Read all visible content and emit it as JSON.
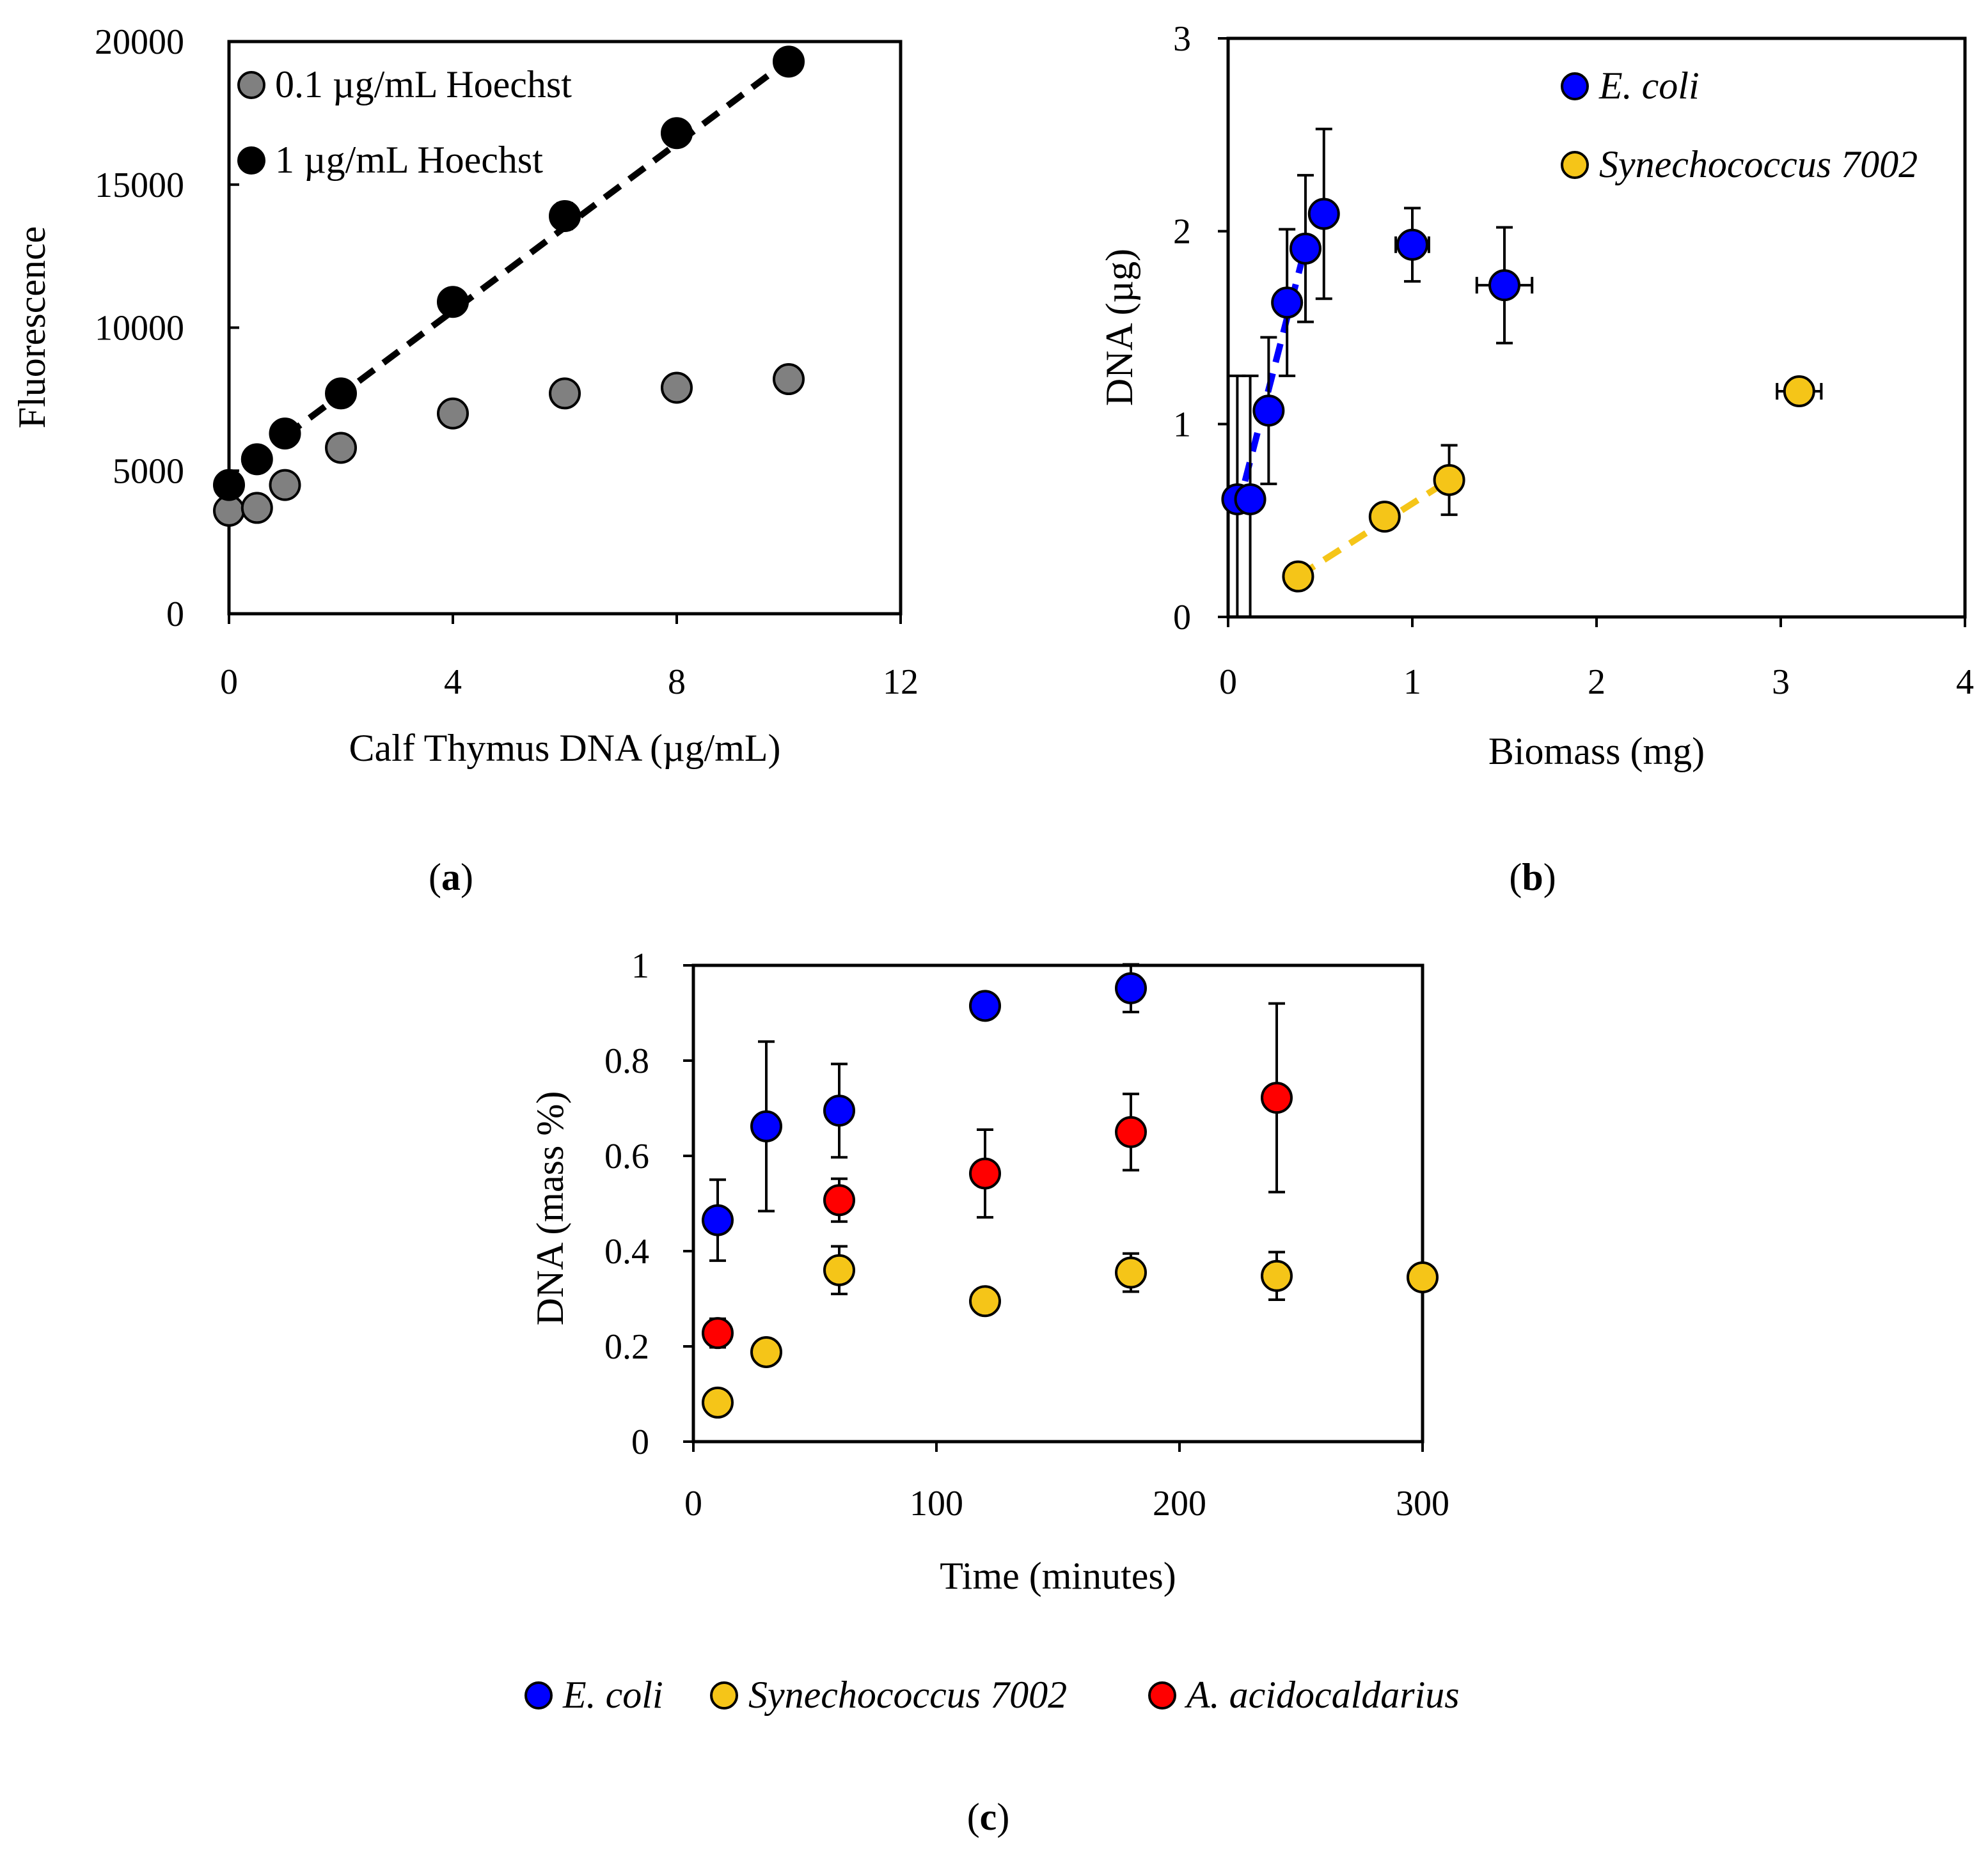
{
  "chart_data": [
    {
      "panel": "a",
      "panel_label_open": "(",
      "panel_label_letter": "a",
      "panel_label_close": ")",
      "type": "scatter",
      "xlabel": "Calf Thymus DNA (µg/mL)",
      "ylabel": "Fluorescence",
      "xlim": [
        0,
        12
      ],
      "ylim": [
        0,
        20000
      ],
      "xticks": [
        0,
        4,
        8,
        12
      ],
      "yticks": [
        0,
        5000,
        10000,
        15000,
        20000
      ],
      "legend_position": "top-left",
      "series": [
        {
          "name": "0.1 µg/mL Hoechst",
          "color": "#808080",
          "x": [
            0,
            0.5,
            1,
            2,
            4,
            6,
            8,
            10
          ],
          "y": [
            3600,
            3700,
            4500,
            5800,
            7000,
            7700,
            7900,
            8200
          ],
          "yerr": [
            0,
            0,
            0,
            0,
            0,
            0,
            0,
            0
          ]
        },
        {
          "name": "1 µg/mL Hoechst",
          "color": "#000000",
          "x": [
            0,
            0.5,
            1,
            2,
            4,
            6,
            8,
            10
          ],
          "y": [
            4500,
            5400,
            6300,
            7700,
            10900,
            13900,
            16800,
            19300
          ],
          "yerr": [
            0,
            0,
            0,
            0,
            0,
            450,
            0,
            0
          ],
          "trendline": {
            "x": [
              1,
              10
            ],
            "y": [
              6200,
              19350
            ],
            "color": "#000000"
          }
        }
      ]
    },
    {
      "panel": "b",
      "panel_label_open": "(",
      "panel_label_letter": "b",
      "panel_label_close": ")",
      "type": "scatter",
      "xlabel": "Biomass (mg)",
      "ylabel": "DNA (µg)",
      "xlim": [
        0,
        4
      ],
      "ylim": [
        0,
        3
      ],
      "xticks": [
        0,
        1,
        2,
        3,
        4
      ],
      "yticks": [
        0,
        1,
        2,
        3
      ],
      "legend_position": "top-right",
      "series": [
        {
          "name": "E. coli",
          "color": "#0000ff",
          "x": [
            0.05,
            0.12,
            0.22,
            0.32,
            0.42,
            0.52,
            1.0,
            1.5
          ],
          "y": [
            0.61,
            0.61,
            1.07,
            1.63,
            1.91,
            2.09,
            1.93,
            1.72
          ],
          "yerr": [
            0.64,
            0.64,
            0.38,
            0.38,
            0.38,
            0.44,
            0.19,
            0.3
          ],
          "xerr": [
            0,
            0,
            0,
            0,
            0,
            0,
            0.09,
            0.15
          ],
          "trendline": {
            "x": [
              0.05,
              0.42
            ],
            "y": [
              0.55,
              1.92
            ],
            "color": "#0000ff"
          }
        },
        {
          "name": "Synechococcus 7002",
          "color": "#f5c518",
          "x": [
            0.38,
            0.85,
            1.2,
            3.1
          ],
          "y": [
            0.21,
            0.52,
            0.71,
            1.17
          ],
          "yerr": [
            0.06,
            0,
            0.18,
            0
          ],
          "xerr": [
            0,
            0,
            0,
            0.12
          ],
          "trendline": {
            "x": [
              0.38,
              1.2
            ],
            "y": [
              0.21,
              0.71
            ],
            "color": "#f5c518"
          }
        }
      ]
    },
    {
      "panel": "c",
      "panel_label_open": "(",
      "panel_label_letter": "c",
      "panel_label_close": ")",
      "type": "scatter",
      "xlabel": "Time (minutes)",
      "ylabel": "DNA (mass %)",
      "xlim": [
        0,
        300
      ],
      "ylim": [
        0,
        1
      ],
      "xticks": [
        0,
        100,
        200,
        300
      ],
      "yticks": [
        0,
        0.2,
        0.4,
        0.6,
        0.8,
        1
      ],
      "legend_position": "bottom",
      "series": [
        {
          "name": "E. coli",
          "color": "#0000ff",
          "x": [
            10,
            30,
            60,
            120,
            180
          ],
          "y": [
            0.465,
            0.662,
            0.695,
            0.915,
            0.952
          ],
          "yerr": [
            0.085,
            0.178,
            0.098,
            0.01,
            0.05
          ]
        },
        {
          "name": "Synechococcus 7002",
          "color": "#f5c518",
          "x": [
            10,
            30,
            60,
            120,
            180,
            240,
            300
          ],
          "y": [
            0.082,
            0.188,
            0.36,
            0.295,
            0.355,
            0.348,
            0.345
          ],
          "yerr": [
            0,
            0,
            0.05,
            0,
            0.04,
            0.05,
            0
          ]
        },
        {
          "name": "A. acidocaldarius",
          "color": "#ff0000",
          "x": [
            10,
            60,
            120,
            180,
            240
          ],
          "y": [
            0.228,
            0.507,
            0.563,
            0.65,
            0.722
          ],
          "yerr": [
            0.03,
            0.045,
            0.092,
            0.08,
            0.198
          ]
        }
      ]
    }
  ]
}
